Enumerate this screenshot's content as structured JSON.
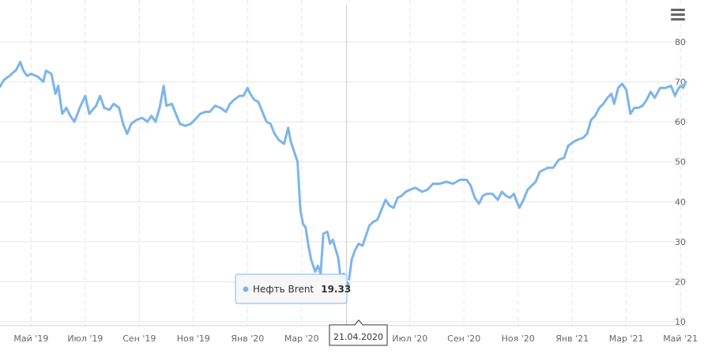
{
  "menu": {
    "icon": "hamburger-menu-icon"
  },
  "tooltip": {
    "series_name": "Нефть Brent",
    "value": "19.33",
    "date_label": "21.04.2020"
  },
  "colors": {
    "series": "#7cb5ec",
    "grid": "#e6e6e6",
    "crosshair": "#cccccc"
  },
  "chart_data": {
    "type": "line",
    "ylim": [
      10,
      85
    ],
    "yticks": [
      10,
      20,
      30,
      40,
      50,
      60,
      70,
      80
    ],
    "grid": true,
    "xticks": [
      {
        "label": "Май '19",
        "t": 4.0
      },
      {
        "label": "Июл '19",
        "t": 6.0
      },
      {
        "label": "Сен '19",
        "t": 8.0
      },
      {
        "label": "Ноя '19",
        "t": 10.0
      },
      {
        "label": "Янв '20",
        "t": 12.0
      },
      {
        "label": "Мар '20",
        "t": 14.0
      },
      {
        "label": "Июл '20",
        "t": 18.0
      },
      {
        "label": "Сен '20",
        "t": 20.0
      },
      {
        "label": "Ноя '20",
        "t": 22.0
      },
      {
        "label": "Янв '21",
        "t": 24.0
      },
      {
        "label": "Мар '21",
        "t": 26.0
      },
      {
        "label": "Май '21",
        "t": 28.0
      }
    ],
    "highlight": {
      "t": 15.66,
      "value": 19.33
    },
    "series": [
      {
        "name": "Нефть Brent",
        "points": [
          [
            2.85,
            68.8
          ],
          [
            3.0,
            70.5
          ],
          [
            3.2,
            71.5
          ],
          [
            3.45,
            73.0
          ],
          [
            3.6,
            75.0
          ],
          [
            3.7,
            73.0
          ],
          [
            3.85,
            71.5
          ],
          [
            4.0,
            72.0
          ],
          [
            4.25,
            71.3
          ],
          [
            4.45,
            70.0
          ],
          [
            4.55,
            72.8
          ],
          [
            4.75,
            72.0
          ],
          [
            4.9,
            67.0
          ],
          [
            5.0,
            69.0
          ],
          [
            5.15,
            62.0
          ],
          [
            5.3,
            63.5
          ],
          [
            5.45,
            61.5
          ],
          [
            5.6,
            60.0
          ],
          [
            5.8,
            63.5
          ],
          [
            6.0,
            66.5
          ],
          [
            6.15,
            62.0
          ],
          [
            6.4,
            64.0
          ],
          [
            6.55,
            66.5
          ],
          [
            6.7,
            63.5
          ],
          [
            6.9,
            63.0
          ],
          [
            7.05,
            64.5
          ],
          [
            7.25,
            63.5
          ],
          [
            7.4,
            59.5
          ],
          [
            7.55,
            57.0
          ],
          [
            7.7,
            59.5
          ],
          [
            7.9,
            60.5
          ],
          [
            8.1,
            61.0
          ],
          [
            8.3,
            60.0
          ],
          [
            8.45,
            61.5
          ],
          [
            8.6,
            60.0
          ],
          [
            8.75,
            63.5
          ],
          [
            8.9,
            69.0
          ],
          [
            9.0,
            64.0
          ],
          [
            9.2,
            64.5
          ],
          [
            9.35,
            62.0
          ],
          [
            9.5,
            59.5
          ],
          [
            9.7,
            59.0
          ],
          [
            9.9,
            59.5
          ],
          [
            10.05,
            60.5
          ],
          [
            10.25,
            62.0
          ],
          [
            10.45,
            62.5
          ],
          [
            10.6,
            62.5
          ],
          [
            10.8,
            64.0
          ],
          [
            11.0,
            63.5
          ],
          [
            11.2,
            62.5
          ],
          [
            11.35,
            64.5
          ],
          [
            11.5,
            65.5
          ],
          [
            11.7,
            66.5
          ],
          [
            11.85,
            66.5
          ],
          [
            12.0,
            68.5
          ],
          [
            12.1,
            67.0
          ],
          [
            12.25,
            65.5
          ],
          [
            12.4,
            65.0
          ],
          [
            12.55,
            62.5
          ],
          [
            12.7,
            60.0
          ],
          [
            12.85,
            59.5
          ],
          [
            13.0,
            57.0
          ],
          [
            13.15,
            55.5
          ],
          [
            13.35,
            54.5
          ],
          [
            13.5,
            58.5
          ],
          [
            13.6,
            55.0
          ],
          [
            13.75,
            52.0
          ],
          [
            13.85,
            50.0
          ],
          [
            13.95,
            38.0
          ],
          [
            14.05,
            34.5
          ],
          [
            14.15,
            33.5
          ],
          [
            14.25,
            29.0
          ],
          [
            14.35,
            25.5
          ],
          [
            14.5,
            22.5
          ],
          [
            14.6,
            24.0
          ],
          [
            14.7,
            22.0
          ],
          [
            14.8,
            32.0
          ],
          [
            14.95,
            32.5
          ],
          [
            15.05,
            29.5
          ],
          [
            15.15,
            30.5
          ],
          [
            15.35,
            26.0
          ],
          [
            15.45,
            20.5
          ],
          [
            15.55,
            22.0
          ],
          [
            15.66,
            19.33
          ],
          [
            15.75,
            20.5
          ],
          [
            15.85,
            25.5
          ],
          [
            15.95,
            27.5
          ],
          [
            16.1,
            29.5
          ],
          [
            16.25,
            29.0
          ],
          [
            16.35,
            31.0
          ],
          [
            16.5,
            34.0
          ],
          [
            16.65,
            35.0
          ],
          [
            16.8,
            35.5
          ],
          [
            16.95,
            38.0
          ],
          [
            17.1,
            40.5
          ],
          [
            17.25,
            39.0
          ],
          [
            17.4,
            38.5
          ],
          [
            17.55,
            41.0
          ],
          [
            17.7,
            41.5
          ],
          [
            17.85,
            42.5
          ],
          [
            18.0,
            43.0
          ],
          [
            18.2,
            43.5
          ],
          [
            18.45,
            42.5
          ],
          [
            18.65,
            43.0
          ],
          [
            18.85,
            44.5
          ],
          [
            19.1,
            44.5
          ],
          [
            19.35,
            45.0
          ],
          [
            19.6,
            44.5
          ],
          [
            19.85,
            45.5
          ],
          [
            20.1,
            45.5
          ],
          [
            20.25,
            44.0
          ],
          [
            20.4,
            41.0
          ],
          [
            20.55,
            39.5
          ],
          [
            20.7,
            41.5
          ],
          [
            20.85,
            42.0
          ],
          [
            21.05,
            42.0
          ],
          [
            21.25,
            40.5
          ],
          [
            21.4,
            42.5
          ],
          [
            21.55,
            41.5
          ],
          [
            21.7,
            41.0
          ],
          [
            21.85,
            42.0
          ],
          [
            21.95,
            40.0
          ],
          [
            22.05,
            38.5
          ],
          [
            22.2,
            40.5
          ],
          [
            22.35,
            43.0
          ],
          [
            22.5,
            44.0
          ],
          [
            22.65,
            45.0
          ],
          [
            22.8,
            47.5
          ],
          [
            22.95,
            48.0
          ],
          [
            23.1,
            48.5
          ],
          [
            23.3,
            48.5
          ],
          [
            23.5,
            50.5
          ],
          [
            23.7,
            51.0
          ],
          [
            23.85,
            54.0
          ],
          [
            24.05,
            55.0
          ],
          [
            24.2,
            55.5
          ],
          [
            24.4,
            56.0
          ],
          [
            24.55,
            57.0
          ],
          [
            24.7,
            60.5
          ],
          [
            24.85,
            61.5
          ],
          [
            25.0,
            63.5
          ],
          [
            25.15,
            64.5
          ],
          [
            25.3,
            66.0
          ],
          [
            25.45,
            67.0
          ],
          [
            25.55,
            64.5
          ],
          [
            25.7,
            68.5
          ],
          [
            25.85,
            69.5
          ],
          [
            26.0,
            68.0
          ],
          [
            26.15,
            62.0
          ],
          [
            26.3,
            63.5
          ],
          [
            26.45,
            63.5
          ],
          [
            26.6,
            64.0
          ],
          [
            26.75,
            65.5
          ],
          [
            26.9,
            67.5
          ],
          [
            27.05,
            66.0
          ],
          [
            27.25,
            68.5
          ],
          [
            27.45,
            68.5
          ],
          [
            27.65,
            69.0
          ],
          [
            27.8,
            66.5
          ],
          [
            27.9,
            68.0
          ],
          [
            28.0,
            69.0
          ],
          [
            28.1,
            68.5
          ],
          [
            28.2,
            70.0
          ]
        ]
      }
    ]
  }
}
